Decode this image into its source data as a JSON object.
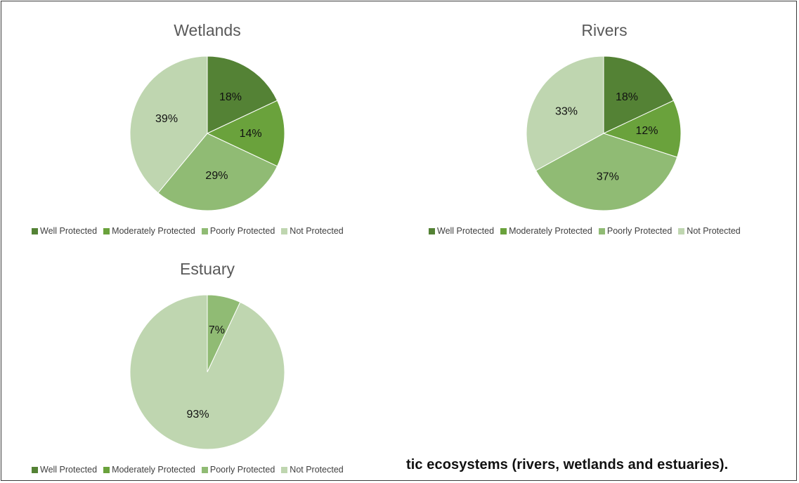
{
  "chart_data": [
    {
      "type": "pie",
      "title": "Wetlands",
      "categories": [
        "Well Protected",
        "Moderately Protected",
        "Poorly Protected",
        "Not Protected"
      ],
      "values": [
        18,
        14,
        29,
        39
      ],
      "labels": [
        "18%",
        "14%",
        "29%",
        "39%"
      ],
      "legend_position": "bottom"
    },
    {
      "type": "pie",
      "title": "Rivers",
      "categories": [
        "Well Protected",
        "Moderately Protected",
        "Poorly Protected",
        "Not Protected"
      ],
      "values": [
        18,
        12,
        37,
        33
      ],
      "labels": [
        "18%",
        "12%",
        "37%",
        "33%"
      ],
      "legend_position": "bottom"
    },
    {
      "type": "pie",
      "title": "Estuary",
      "categories": [
        "Well Protected",
        "Moderately Protected",
        "Poorly Protected",
        "Not Protected"
      ],
      "values": [
        0,
        0,
        7,
        93
      ],
      "labels": [
        "",
        "",
        "7%",
        "93%"
      ],
      "legend_position": "bottom"
    }
  ],
  "colors": [
    "#548235",
    "#6aa23c",
    "#90bb74",
    "#bfd6b0"
  ],
  "caption": "tic ecosystems (rivers, wetlands and estuaries)."
}
